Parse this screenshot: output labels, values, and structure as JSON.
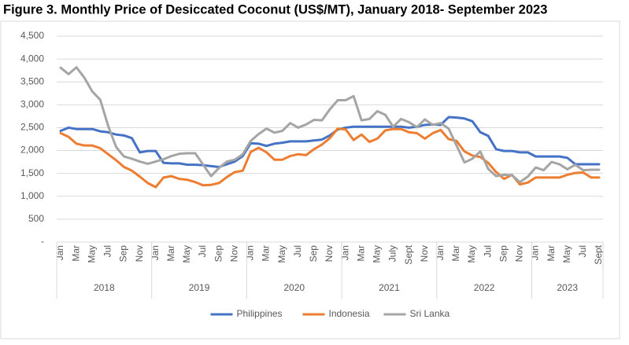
{
  "chart_data": {
    "type": "line",
    "title": "Figure 3. Monthly Price of Desiccated Coconut (US$/MT), January 2018- September 2023",
    "categories": [
      "Jan",
      null,
      "Mar",
      null,
      "May",
      null,
      "Jul",
      null,
      "Sep",
      null,
      "Nov",
      null,
      "Jan",
      null,
      "Mar",
      null,
      "May",
      null,
      "Jul",
      null,
      "Sep",
      null,
      "Nov",
      null,
      "Jan",
      null,
      "Mar",
      null,
      "May",
      null,
      "Jul",
      null,
      "Sep",
      null,
      "Nov",
      null,
      "Jan",
      null,
      "Mar",
      null,
      "May",
      null,
      "July",
      null,
      "Sept",
      null,
      "Nov",
      null,
      "Jan",
      null,
      "Mar",
      null,
      "May",
      null,
      "Jul",
      null,
      "Sep",
      null,
      "Nov",
      null,
      "Jan",
      null,
      "Mar",
      null,
      "May",
      null,
      "Jul",
      null,
      "Sept"
    ],
    "groups": [
      "2018",
      "2019",
      "2020",
      "2021",
      "2022",
      "2023"
    ],
    "series": [
      {
        "name": "Philippines",
        "color": "#4472c4",
        "values": [
          2430,
          2500,
          2470,
          2470,
          2470,
          2420,
          2400,
          2350,
          2330,
          2270,
          1960,
          1990,
          1990,
          1730,
          1720,
          1720,
          1690,
          1690,
          1680,
          1660,
          1640,
          1700,
          1760,
          1880,
          2160,
          2150,
          2100,
          2150,
          2170,
          2200,
          2200,
          2200,
          2220,
          2240,
          2330,
          2460,
          2500,
          2520,
          2520,
          2520,
          2520,
          2520,
          2520,
          2520,
          2500,
          2520,
          2560,
          2570,
          2560,
          2730,
          2720,
          2700,
          2640,
          2400,
          2320,
          2030,
          1990,
          1990,
          1960,
          1960,
          1870,
          1870,
          1870,
          1870,
          1840,
          1700,
          1700,
          1700,
          1700
        ]
      },
      {
        "name": "Indonesia",
        "color": "#ed7d31",
        "values": [
          2380,
          2300,
          2150,
          2110,
          2110,
          2050,
          1920,
          1790,
          1640,
          1560,
          1430,
          1290,
          1200,
          1410,
          1440,
          1380,
          1360,
          1310,
          1240,
          1250,
          1290,
          1420,
          1530,
          1560,
          1970,
          2060,
          1960,
          1800,
          1800,
          1880,
          1920,
          1900,
          2030,
          2130,
          2270,
          2480,
          2460,
          2230,
          2350,
          2190,
          2260,
          2440,
          2470,
          2470,
          2400,
          2380,
          2260,
          2380,
          2450,
          2250,
          2210,
          1980,
          1890,
          1860,
          1730,
          1530,
          1380,
          1470,
          1260,
          1300,
          1410,
          1410,
          1410,
          1410,
          1470,
          1510,
          1520,
          1410,
          1410
        ]
      },
      {
        "name": "Sri Lanka",
        "color": "#a5a5a5",
        "values": [
          3810,
          3670,
          3820,
          3590,
          3290,
          3110,
          2540,
          2080,
          1870,
          1820,
          1760,
          1710,
          1760,
          1810,
          1880,
          1930,
          1940,
          1940,
          1690,
          1440,
          1620,
          1760,
          1800,
          1920,
          2210,
          2360,
          2480,
          2390,
          2430,
          2600,
          2500,
          2570,
          2670,
          2660,
          2900,
          3100,
          3100,
          3190,
          2660,
          2690,
          2860,
          2780,
          2520,
          2690,
          2620,
          2510,
          2680,
          2560,
          2600,
          2480,
          2110,
          1740,
          1820,
          1980,
          1600,
          1440,
          1470,
          1460,
          1310,
          1430,
          1630,
          1570,
          1750,
          1700,
          1590,
          1690,
          1570,
          1580,
          1580
        ]
      }
    ],
    "ylim": [
      0,
      4500
    ],
    "yticks": [
      {
        "value": 0,
        "label": "-"
      },
      500,
      {
        "value": 1000,
        "label": "1,000"
      },
      {
        "value": 1500,
        "label": "1,500"
      },
      {
        "value": 2000,
        "label": "2,000"
      },
      {
        "value": 2500,
        "label": "2,500"
      },
      {
        "value": 3000,
        "label": "3,000"
      },
      {
        "value": 3500,
        "label": "3,500"
      },
      {
        "value": 4000,
        "label": "4,000"
      },
      {
        "value": 4500,
        "label": "4,500"
      }
    ],
    "grid": true,
    "legend": "bottom"
  }
}
